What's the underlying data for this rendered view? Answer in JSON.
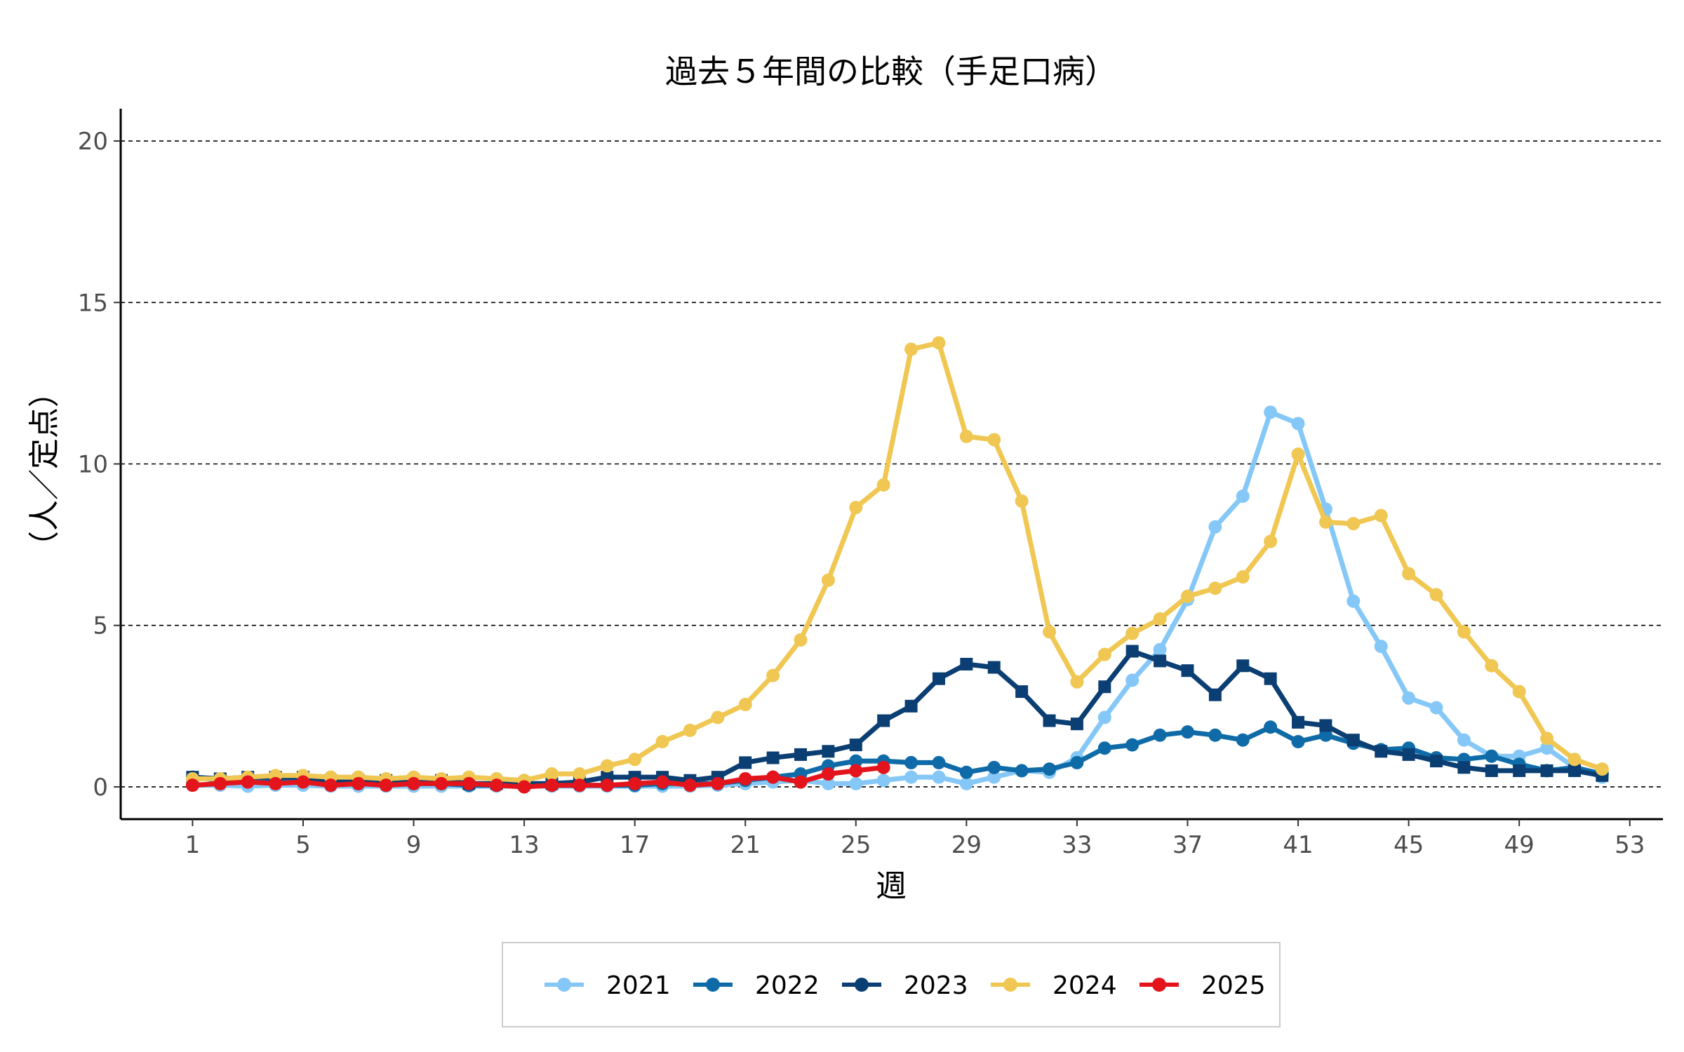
{
  "chart_data": {
    "type": "line",
    "title": "過去５年間の比較（手足口病）",
    "xlabel": "週",
    "ylabel": "（人／定点）",
    "xlim": [
      -1.6,
      54.2
    ],
    "ylim": [
      -1,
      21
    ],
    "x_ticks": [
      1,
      5,
      9,
      13,
      17,
      21,
      25,
      29,
      33,
      37,
      41,
      45,
      49,
      53
    ],
    "y_ticks": [
      0,
      5,
      10,
      15,
      20
    ],
    "grid": "horizontal-dashed",
    "legend_position": "bottom",
    "series": [
      {
        "name": "2021",
        "color": "#85c8f7",
        "marker": "circle",
        "x": [
          1,
          2,
          3,
          4,
          5,
          6,
          7,
          8,
          9,
          10,
          11,
          12,
          13,
          14,
          15,
          16,
          17,
          18,
          19,
          20,
          21,
          22,
          23,
          24,
          25,
          26,
          27,
          28,
          29,
          30,
          31,
          32,
          33,
          34,
          35,
          36,
          37,
          38,
          39,
          40,
          41,
          42,
          43,
          44,
          45,
          46,
          47,
          48,
          49,
          50,
          51,
          52
        ],
        "values": [
          0.05,
          0.05,
          0.02,
          0.05,
          0.05,
          0.02,
          0.02,
          0.02,
          0.02,
          0.02,
          0.02,
          0.02,
          0.02,
          0.02,
          0.02,
          0.02,
          0.02,
          0.02,
          0.02,
          0.05,
          0.1,
          0.15,
          0.2,
          0.1,
          0.1,
          0.2,
          0.3,
          0.3,
          0.1,
          0.3,
          0.5,
          0.45,
          0.9,
          2.15,
          3.3,
          4.25,
          5.8,
          8.05,
          9,
          11.6,
          11.25,
          8.6,
          5.75,
          4.35,
          2.75,
          2.45,
          1.45,
          0.95,
          0.95,
          1.2,
          0.6,
          0.3
        ]
      },
      {
        "name": "2022",
        "color": "#0f6ba8",
        "marker": "circle",
        "x": [
          1,
          2,
          3,
          4,
          5,
          6,
          7,
          8,
          9,
          10,
          11,
          12,
          13,
          14,
          15,
          16,
          17,
          18,
          19,
          20,
          21,
          22,
          23,
          24,
          25,
          26,
          27,
          28,
          29,
          30,
          31,
          32,
          33,
          34,
          35,
          36,
          37,
          38,
          39,
          40,
          41,
          42,
          43,
          44,
          45,
          46,
          47,
          48,
          49,
          50,
          51,
          52
        ],
        "values": [
          0.3,
          0.2,
          0.2,
          0.2,
          0.2,
          0.1,
          0.1,
          0.1,
          0.1,
          0.1,
          0.05,
          0.05,
          0.05,
          0.05,
          0.05,
          0.05,
          0.05,
          0.1,
          0.1,
          0.1,
          0.2,
          0.3,
          0.4,
          0.65,
          0.8,
          0.8,
          0.75,
          0.75,
          0.45,
          0.6,
          0.5,
          0.55,
          0.75,
          1.2,
          1.3,
          1.6,
          1.7,
          1.6,
          1.45,
          1.85,
          1.4,
          1.6,
          1.35,
          1.15,
          1.2,
          0.9,
          0.85,
          0.95,
          0.7,
          0.5,
          0.6,
          0.4
        ]
      },
      {
        "name": "2023",
        "color": "#0b3e72",
        "marker": "square",
        "x": [
          1,
          2,
          3,
          4,
          5,
          6,
          7,
          8,
          9,
          10,
          11,
          12,
          13,
          14,
          15,
          16,
          17,
          18,
          19,
          20,
          21,
          22,
          23,
          24,
          25,
          26,
          27,
          28,
          29,
          30,
          31,
          32,
          33,
          34,
          35,
          36,
          37,
          38,
          39,
          40,
          41,
          42,
          43,
          44,
          45,
          46,
          47,
          48,
          49,
          50,
          51,
          52
        ],
        "values": [
          0.3,
          0.25,
          0.3,
          0.3,
          0.3,
          0.2,
          0.2,
          0.2,
          0.2,
          0.2,
          0.1,
          0.1,
          0.1,
          0.1,
          0.15,
          0.3,
          0.3,
          0.3,
          0.2,
          0.3,
          0.75,
          0.9,
          1.0,
          1.1,
          1.3,
          2.05,
          2.5,
          3.35,
          3.8,
          3.7,
          2.95,
          2.05,
          1.95,
          3.1,
          4.2,
          3.9,
          3.6,
          2.85,
          3.75,
          3.35,
          2.0,
          1.9,
          1.45,
          1.1,
          1.0,
          0.8,
          0.6,
          0.5,
          0.5,
          0.5,
          0.5,
          0.35
        ]
      },
      {
        "name": "2024",
        "color": "#f0c752",
        "marker": "circle",
        "x": [
          1,
          2,
          3,
          4,
          5,
          6,
          7,
          8,
          9,
          10,
          11,
          12,
          13,
          14,
          15,
          16,
          17,
          18,
          19,
          20,
          21,
          22,
          23,
          24,
          25,
          26,
          27,
          28,
          29,
          30,
          31,
          32,
          33,
          34,
          35,
          36,
          37,
          38,
          39,
          40,
          41,
          42,
          43,
          44,
          45,
          46,
          47,
          48,
          49,
          50,
          51,
          52
        ],
        "values": [
          0.25,
          0.25,
          0.3,
          0.35,
          0.35,
          0.3,
          0.3,
          0.25,
          0.3,
          0.25,
          0.3,
          0.25,
          0.2,
          0.4,
          0.4,
          0.65,
          0.85,
          1.4,
          1.75,
          2.15,
          2.55,
          3.45,
          4.55,
          6.4,
          8.65,
          9.35,
          13.55,
          13.75,
          10.85,
          10.75,
          8.85,
          4.8,
          3.25,
          4.1,
          4.75,
          5.2,
          5.9,
          6.15,
          6.5,
          7.6,
          10.3,
          8.2,
          8.15,
          8.4,
          6.6,
          5.95,
          4.8,
          3.75,
          2.95,
          1.5,
          0.85,
          0.55
        ]
      },
      {
        "name": "2025",
        "color": "#e3141b",
        "marker": "circle",
        "x": [
          1,
          2,
          3,
          4,
          5,
          6,
          7,
          8,
          9,
          10,
          11,
          12,
          13,
          14,
          15,
          16,
          17,
          18,
          19,
          20,
          21,
          22,
          23,
          24,
          25,
          26
        ],
        "values": [
          0.05,
          0.1,
          0.15,
          0.1,
          0.15,
          0.05,
          0.1,
          0.05,
          0.1,
          0.1,
          0.1,
          0.05,
          0.0,
          0.05,
          0.05,
          0.05,
          0.1,
          0.15,
          0.05,
          0.1,
          0.25,
          0.3,
          0.15,
          0.4,
          0.5,
          0.6
        ]
      }
    ]
  }
}
